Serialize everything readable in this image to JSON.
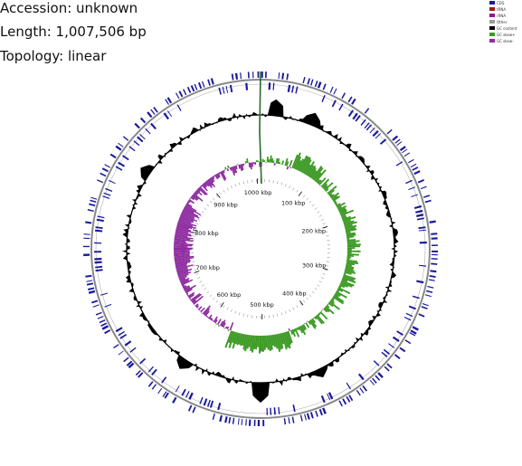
{
  "info": {
    "accession": "Accession: unknown",
    "length": "Length: 1,007,506 bp",
    "topology": "Topology: linear"
  },
  "legend": [
    {
      "label": "CDS",
      "color": "#1a1a9c"
    },
    {
      "label": "tRNA",
      "color": "#a01818"
    },
    {
      "label": "rRNA",
      "color": "#8c1a8c"
    },
    {
      "label": "Other",
      "color": "#999999"
    },
    {
      "label": "GC content",
      "color": "#000000"
    },
    {
      "label": "GC skew+",
      "color": "#3c9a24"
    },
    {
      "label": "GC skew-",
      "color": "#8e2ba0"
    }
  ],
  "map": {
    "genome_length_bp": 1007506,
    "tick_labels": [
      "100 kbp",
      "200 kbp",
      "300 kbp",
      "400 kbp",
      "500 kbp",
      "600 kbp",
      "700 kbp",
      "800 kbp",
      "900 kbp",
      "1000 kbp"
    ],
    "colors": {
      "cds": "#1a1a9c",
      "backbone": "#888888",
      "gc_content": "#000000",
      "gc_skew_positive": "#3c9a24",
      "gc_skew_negative": "#8e2ba0",
      "origin_marker": "#2a6a2a"
    }
  }
}
